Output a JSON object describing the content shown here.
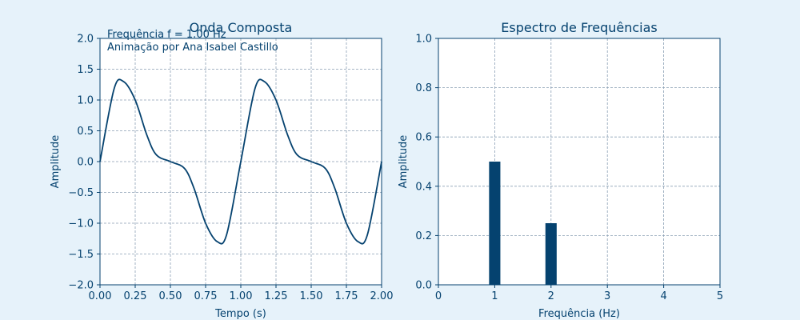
{
  "style": {
    "background": "#e6f2fa",
    "ink": "#05426f",
    "grid": "#8a9fb4",
    "plot_bg": "#ffffff"
  },
  "chart_data": [
    {
      "type": "line",
      "title": "Onda Composta",
      "xlabel": "Tempo (s)",
      "ylabel": "Amplitude",
      "xlim": [
        0,
        2
      ],
      "ylim": [
        -2,
        2
      ],
      "xticks": [
        "0.00",
        "0.25",
        "0.50",
        "0.75",
        "1.00",
        "1.25",
        "1.50",
        "1.75",
        "2.00"
      ],
      "yticks": [
        "−2.0",
        "−1.5",
        "−1.0",
        "−0.5",
        "0.0",
        "0.5",
        "1.0",
        "1.5",
        "2.0"
      ],
      "grid": true,
      "annotations": [
        "Frequência f = 1.00 Hz",
        "Animação por Ana Isabel Castillo"
      ],
      "series": [
        {
          "x": [
            0,
            0.1,
            0.167,
            0.25,
            0.333,
            0.4,
            0.5,
            0.6,
            0.667,
            0.75,
            0.833,
            0.9,
            1.0,
            1.1,
            1.167,
            1.25,
            1.333,
            1.4,
            1.5,
            1.6,
            1.667,
            1.75,
            1.833,
            1.9,
            2.0
          ],
          "y": [
            0,
            1.18,
            1.3,
            1.0,
            0.43,
            0.11,
            0,
            -0.11,
            -0.43,
            -1.0,
            -1.3,
            -1.18,
            0,
            1.18,
            1.3,
            1.0,
            0.43,
            0.11,
            0,
            -0.11,
            -0.43,
            -1.0,
            -1.3,
            -1.18,
            0
          ]
        }
      ]
    },
    {
      "type": "bar",
      "title": "Espectro de Frequências",
      "xlabel": "Frequência (Hz)",
      "ylabel": "Amplitude",
      "xlim": [
        0,
        5
      ],
      "ylim": [
        0,
        1
      ],
      "xticks": [
        "0",
        "1",
        "2",
        "3",
        "4",
        "5"
      ],
      "yticks": [
        "0.0",
        "0.2",
        "0.4",
        "0.6",
        "0.8",
        "1.0"
      ],
      "grid": true,
      "x": [
        1,
        2
      ],
      "values": [
        0.5,
        0.25
      ]
    }
  ]
}
